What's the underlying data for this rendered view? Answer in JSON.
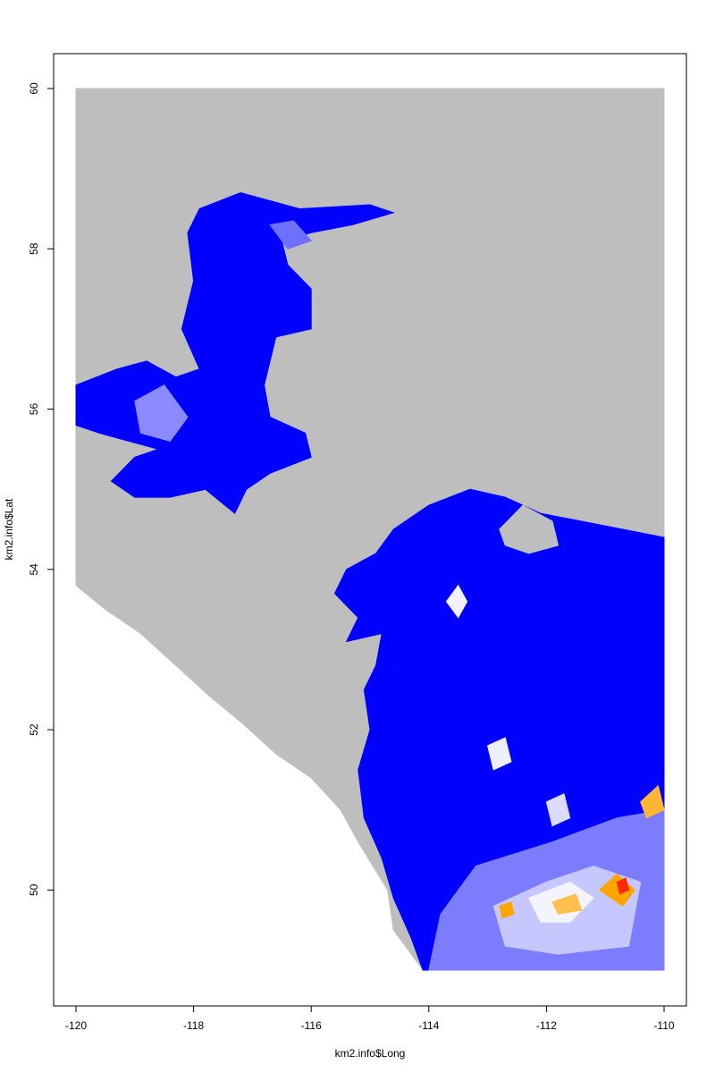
{
  "chart_data": {
    "type": "heatmap",
    "title": "",
    "xlabel": "km2.info$Long",
    "ylabel": "km2.info$Lat",
    "xlim": [
      -120,
      -110
    ],
    "ylim": [
      49,
      60
    ],
    "x_ticks": [
      -120,
      -118,
      -116,
      -114,
      -112,
      -110
    ],
    "x_tick_labels": [
      "-120",
      "-118",
      "-116",
      "-114",
      "-112",
      "-110"
    ],
    "y_ticks": [
      50,
      52,
      54,
      56,
      58,
      60
    ],
    "y_tick_labels": [
      "50",
      "52",
      "54",
      "56",
      "58",
      "60"
    ],
    "grid": false,
    "legend": "none",
    "colors": {
      "background_cells": "#bebebe",
      "low": "#0000ff",
      "mid": "#ffffff",
      "high": "#ffa500",
      "max": "#ff0000"
    },
    "regions": [
      {
        "name": "grey-background",
        "fill": "#bebebe",
        "polygon": [
          [
            -120,
            60
          ],
          [
            -110,
            60
          ],
          [
            -110,
            49
          ],
          [
            -114.1,
            49
          ],
          [
            -114.3,
            49.2
          ],
          [
            -114.6,
            49.5
          ],
          [
            -114.7,
            50.0
          ],
          [
            -115.2,
            50.6
          ],
          [
            -115.5,
            51.0
          ],
          [
            -116.0,
            51.4
          ],
          [
            -116.6,
            51.7
          ],
          [
            -117.2,
            52.1
          ],
          [
            -117.7,
            52.4
          ],
          [
            -118.3,
            52.8
          ],
          [
            -118.9,
            53.2
          ],
          [
            -119.5,
            53.5
          ],
          [
            -120,
            53.8
          ]
        ]
      },
      {
        "name": "northern-region",
        "fill": "#0000ff",
        "polygon": [
          [
            -117.9,
            58.5
          ],
          [
            -117.2,
            58.7
          ],
          [
            -116.2,
            58.5
          ],
          [
            -115.0,
            58.55
          ],
          [
            -114.6,
            58.45
          ],
          [
            -115.3,
            58.3
          ],
          [
            -116.0,
            58.2
          ],
          [
            -116.5,
            58.1
          ],
          [
            -116.4,
            57.8
          ],
          [
            -116.0,
            57.5
          ],
          [
            -116.0,
            57.0
          ],
          [
            -116.6,
            56.9
          ],
          [
            -116.8,
            56.3
          ],
          [
            -116.7,
            55.9
          ],
          [
            -116.1,
            55.7
          ],
          [
            -116.0,
            55.4
          ],
          [
            -116.7,
            55.2
          ],
          [
            -117.1,
            55.0
          ],
          [
            -117.3,
            54.7
          ],
          [
            -117.8,
            55.0
          ],
          [
            -118.4,
            54.9
          ],
          [
            -119.0,
            54.9
          ],
          [
            -119.4,
            55.1
          ],
          [
            -119.0,
            55.4
          ],
          [
            -118.6,
            55.5
          ],
          [
            -119.1,
            55.6
          ],
          [
            -119.6,
            55.7
          ],
          [
            -120,
            55.8
          ],
          [
            -120,
            56.3
          ],
          [
            -119.3,
            56.5
          ],
          [
            -118.8,
            56.6
          ],
          [
            -118.3,
            56.4
          ],
          [
            -117.9,
            56.5
          ],
          [
            -118.2,
            57.0
          ],
          [
            -118.0,
            57.6
          ],
          [
            -118.1,
            58.2
          ]
        ]
      },
      {
        "name": "northern-light-patch",
        "fill": "#8b8bff",
        "polygon": [
          [
            -119.0,
            56.1
          ],
          [
            -118.5,
            56.3
          ],
          [
            -118.1,
            55.9
          ],
          [
            -118.4,
            55.6
          ],
          [
            -118.9,
            55.7
          ]
        ]
      },
      {
        "name": "northern-light-patch-2",
        "fill": "#6f6fff",
        "polygon": [
          [
            -116.7,
            58.3
          ],
          [
            -116.3,
            58.35
          ],
          [
            -116.0,
            58.1
          ],
          [
            -116.4,
            58.0
          ]
        ]
      },
      {
        "name": "southern-region",
        "fill": "#0000ff",
        "polygon": [
          [
            -114.0,
            54.8
          ],
          [
            -113.3,
            55.0
          ],
          [
            -112.7,
            54.9
          ],
          [
            -112.1,
            54.7
          ],
          [
            -111.4,
            54.6
          ],
          [
            -110.7,
            54.5
          ],
          [
            -110.0,
            54.4
          ],
          [
            -110.0,
            49.0
          ],
          [
            -114.1,
            49.0
          ],
          [
            -114.3,
            49.4
          ],
          [
            -114.6,
            49.9
          ],
          [
            -114.8,
            50.4
          ],
          [
            -115.1,
            50.9
          ],
          [
            -115.2,
            51.5
          ],
          [
            -115.0,
            52.0
          ],
          [
            -115.1,
            52.5
          ],
          [
            -114.9,
            52.8
          ],
          [
            -114.8,
            53.2
          ],
          [
            -115.4,
            53.1
          ],
          [
            -115.2,
            53.4
          ],
          [
            -115.6,
            53.7
          ],
          [
            -115.4,
            54.0
          ],
          [
            -114.9,
            54.2
          ],
          [
            -114.6,
            54.5
          ]
        ]
      },
      {
        "name": "southern-lake-hole",
        "fill": "#bebebe",
        "polygon": [
          [
            -112.8,
            54.5
          ],
          [
            -112.4,
            54.8
          ],
          [
            -111.9,
            54.6
          ],
          [
            -111.8,
            54.3
          ],
          [
            -112.3,
            54.2
          ],
          [
            -112.7,
            54.3
          ]
        ]
      },
      {
        "name": "southern-light-band",
        "fill": "#7c7cff",
        "polygon": [
          [
            -113.2,
            50.3
          ],
          [
            -111.9,
            50.6
          ],
          [
            -110.8,
            50.9
          ],
          [
            -110.0,
            51.0
          ],
          [
            -110.0,
            49.0
          ],
          [
            -114.0,
            49.0
          ],
          [
            -113.8,
            49.7
          ]
        ]
      },
      {
        "name": "southern-pale-area",
        "fill": "#c7c7ff",
        "polygon": [
          [
            -112.9,
            49.8
          ],
          [
            -112.0,
            50.1
          ],
          [
            -111.2,
            50.3
          ],
          [
            -110.4,
            50.1
          ],
          [
            -110.6,
            49.3
          ],
          [
            -111.8,
            49.2
          ],
          [
            -112.7,
            49.3
          ]
        ]
      },
      {
        "name": "southern-white-patch",
        "fill": "#f4f4ff",
        "polygon": [
          [
            -112.3,
            49.9
          ],
          [
            -111.6,
            50.1
          ],
          [
            -111.2,
            49.9
          ],
          [
            -111.6,
            49.6
          ],
          [
            -112.1,
            49.6
          ]
        ]
      },
      {
        "name": "orange-patch-1",
        "fill": "#ffa500",
        "polygon": [
          [
            -111.1,
            50.0
          ],
          [
            -110.8,
            50.2
          ],
          [
            -110.5,
            50.0
          ],
          [
            -110.7,
            49.8
          ]
        ]
      },
      {
        "name": "orange-patch-2",
        "fill": "#ffc04d",
        "polygon": [
          [
            -111.9,
            49.85
          ],
          [
            -111.5,
            49.95
          ],
          [
            -111.4,
            49.75
          ],
          [
            -111.8,
            49.7
          ]
        ]
      },
      {
        "name": "orange-patch-3",
        "fill": "#ffa500",
        "polygon": [
          [
            -112.8,
            49.8
          ],
          [
            -112.6,
            49.85
          ],
          [
            -112.55,
            49.7
          ],
          [
            -112.75,
            49.65
          ]
        ]
      },
      {
        "name": "orange-patch-4",
        "fill": "#ffb733",
        "polygon": [
          [
            -110.4,
            51.1
          ],
          [
            -110.1,
            51.3
          ],
          [
            -110.0,
            51.0
          ],
          [
            -110.3,
            50.9
          ]
        ]
      },
      {
        "name": "red-patch",
        "fill": "#ff2a00",
        "polygon": [
          [
            -110.8,
            50.1
          ],
          [
            -110.65,
            50.15
          ],
          [
            -110.6,
            50.0
          ],
          [
            -110.75,
            49.95
          ]
        ]
      },
      {
        "name": "white-patch-north",
        "fill": "#f0f0ff",
        "polygon": [
          [
            -113.7,
            53.6
          ],
          [
            -113.5,
            53.8
          ],
          [
            -113.35,
            53.6
          ],
          [
            -113.5,
            53.4
          ]
        ]
      },
      {
        "name": "white-patch-mid",
        "fill": "#eeeeff",
        "polygon": [
          [
            -113.0,
            51.8
          ],
          [
            -112.7,
            51.9
          ],
          [
            -112.6,
            51.6
          ],
          [
            -112.9,
            51.5
          ]
        ]
      },
      {
        "name": "white-patch-east",
        "fill": "#dcdcff",
        "polygon": [
          [
            -112.0,
            51.1
          ],
          [
            -111.7,
            51.2
          ],
          [
            -111.6,
            50.9
          ],
          [
            -111.9,
            50.8
          ]
        ]
      }
    ]
  }
}
